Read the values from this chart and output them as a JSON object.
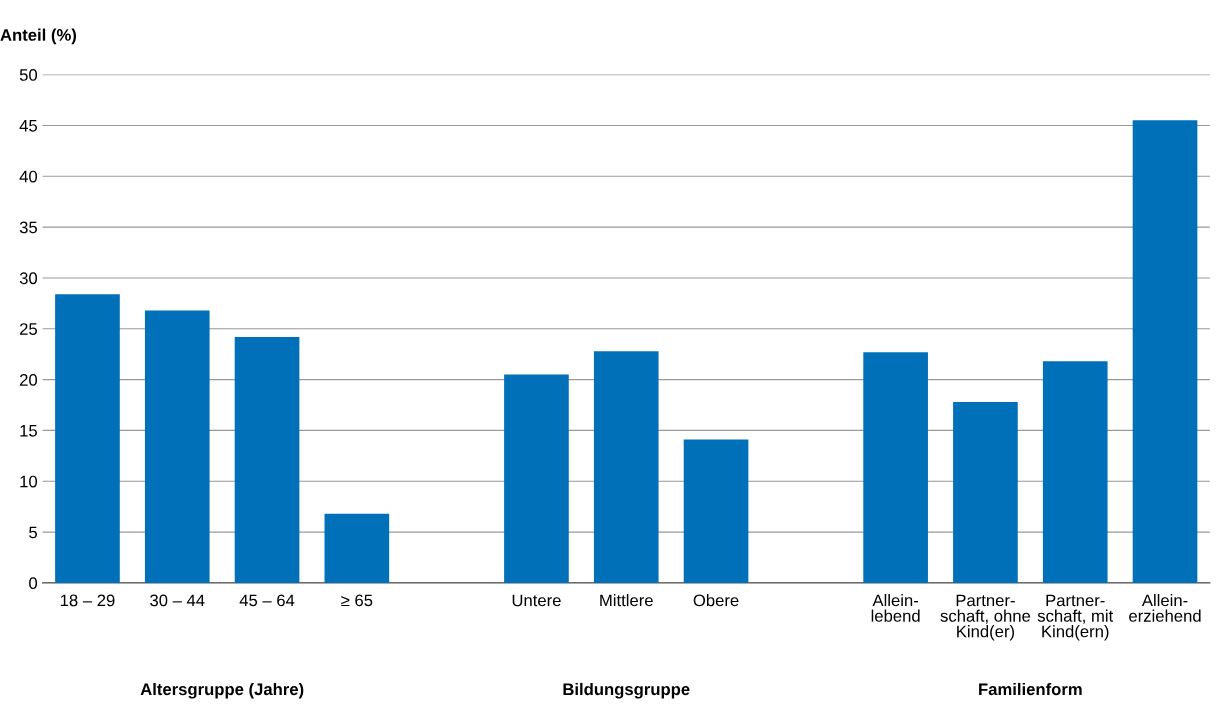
{
  "chart_data": {
    "type": "bar",
    "ylabel": "Anteil (%)",
    "categories": [
      "18 – 29",
      "30 – 44",
      "45 – 64",
      "≥ 65",
      null,
      "Untere",
      "Mittlere",
      "Obere",
      null,
      "Allein-\nlebend",
      "Partner-\nschaft, ohne\nKind(er)",
      "Partner-\nschaft, mit\nKind(ern)",
      "Allein-\nerziehend"
    ],
    "values": [
      28.4,
      26.8,
      24.2,
      6.8,
      null,
      20.5,
      22.8,
      14.1,
      null,
      22.7,
      17.8,
      21.8,
      45.5
    ],
    "color": "#0070b8",
    "ylim": [
      0,
      50
    ],
    "yticks": [
      0,
      5,
      10,
      15,
      20,
      25,
      30,
      35,
      40,
      45,
      50
    ],
    "grid": "y",
    "annotations": [
      "Altersgruppe (Jahre)",
      "Bildungsgruppe",
      "Familienform"
    ]
  }
}
